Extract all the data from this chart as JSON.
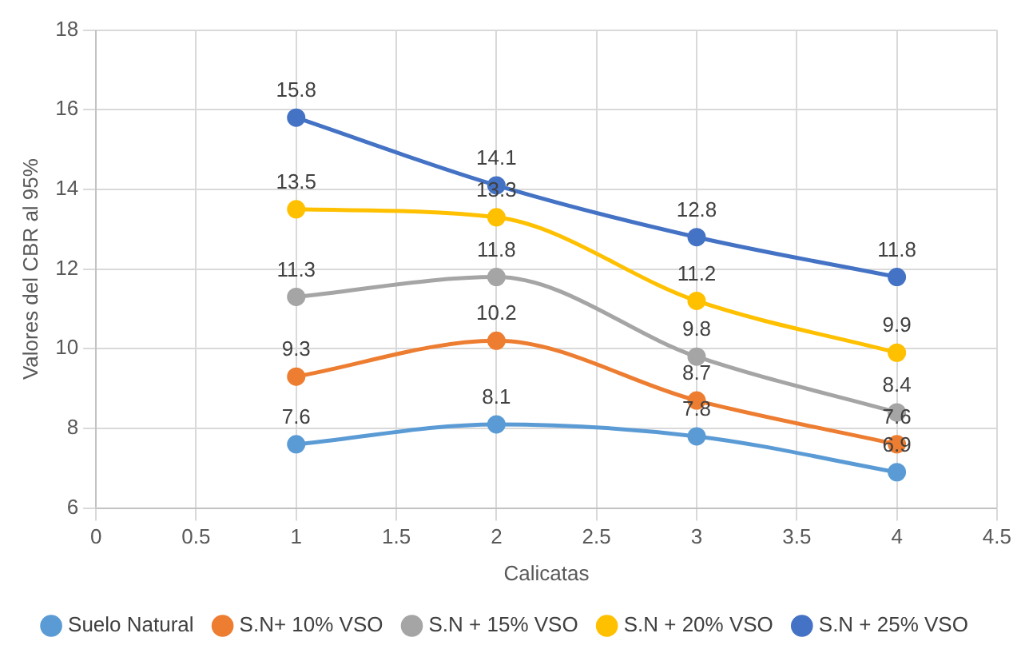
{
  "chart_data": {
    "type": "line",
    "xlabel": "Calicatas",
    "ylabel": "Valores del CBR al 95%",
    "x": [
      1,
      2,
      3,
      4
    ],
    "series": [
      {
        "name": "Suelo Natural",
        "color": "#5b9bd5",
        "values": [
          7.6,
          8.1,
          7.8,
          6.9
        ]
      },
      {
        "name": "S.N+ 10% VSO",
        "color": "#ed7d31",
        "values": [
          9.3,
          10.2,
          8.7,
          7.6
        ]
      },
      {
        "name": "S.N + 15% VSO",
        "color": "#a5a5a5",
        "values": [
          11.3,
          11.8,
          9.8,
          8.4
        ]
      },
      {
        "name": "S.N + 20% VSO",
        "color": "#ffc000",
        "values": [
          13.5,
          13.3,
          11.2,
          9.9
        ]
      },
      {
        "name": "S.N + 25% VSO",
        "color": "#4472c4",
        "values": [
          15.8,
          14.1,
          12.8,
          11.8
        ]
      }
    ],
    "xlim": [
      0,
      4.5
    ],
    "xticks": [
      0,
      0.5,
      1,
      1.5,
      2,
      2.5,
      3,
      3.5,
      4,
      4.5
    ],
    "ylim": [
      6,
      18
    ],
    "yticks": [
      6,
      8,
      10,
      12,
      14,
      16,
      18
    ],
    "grid": true,
    "legend": "bottom",
    "marker": "circle",
    "line_style": "solid",
    "data_labels": true
  }
}
